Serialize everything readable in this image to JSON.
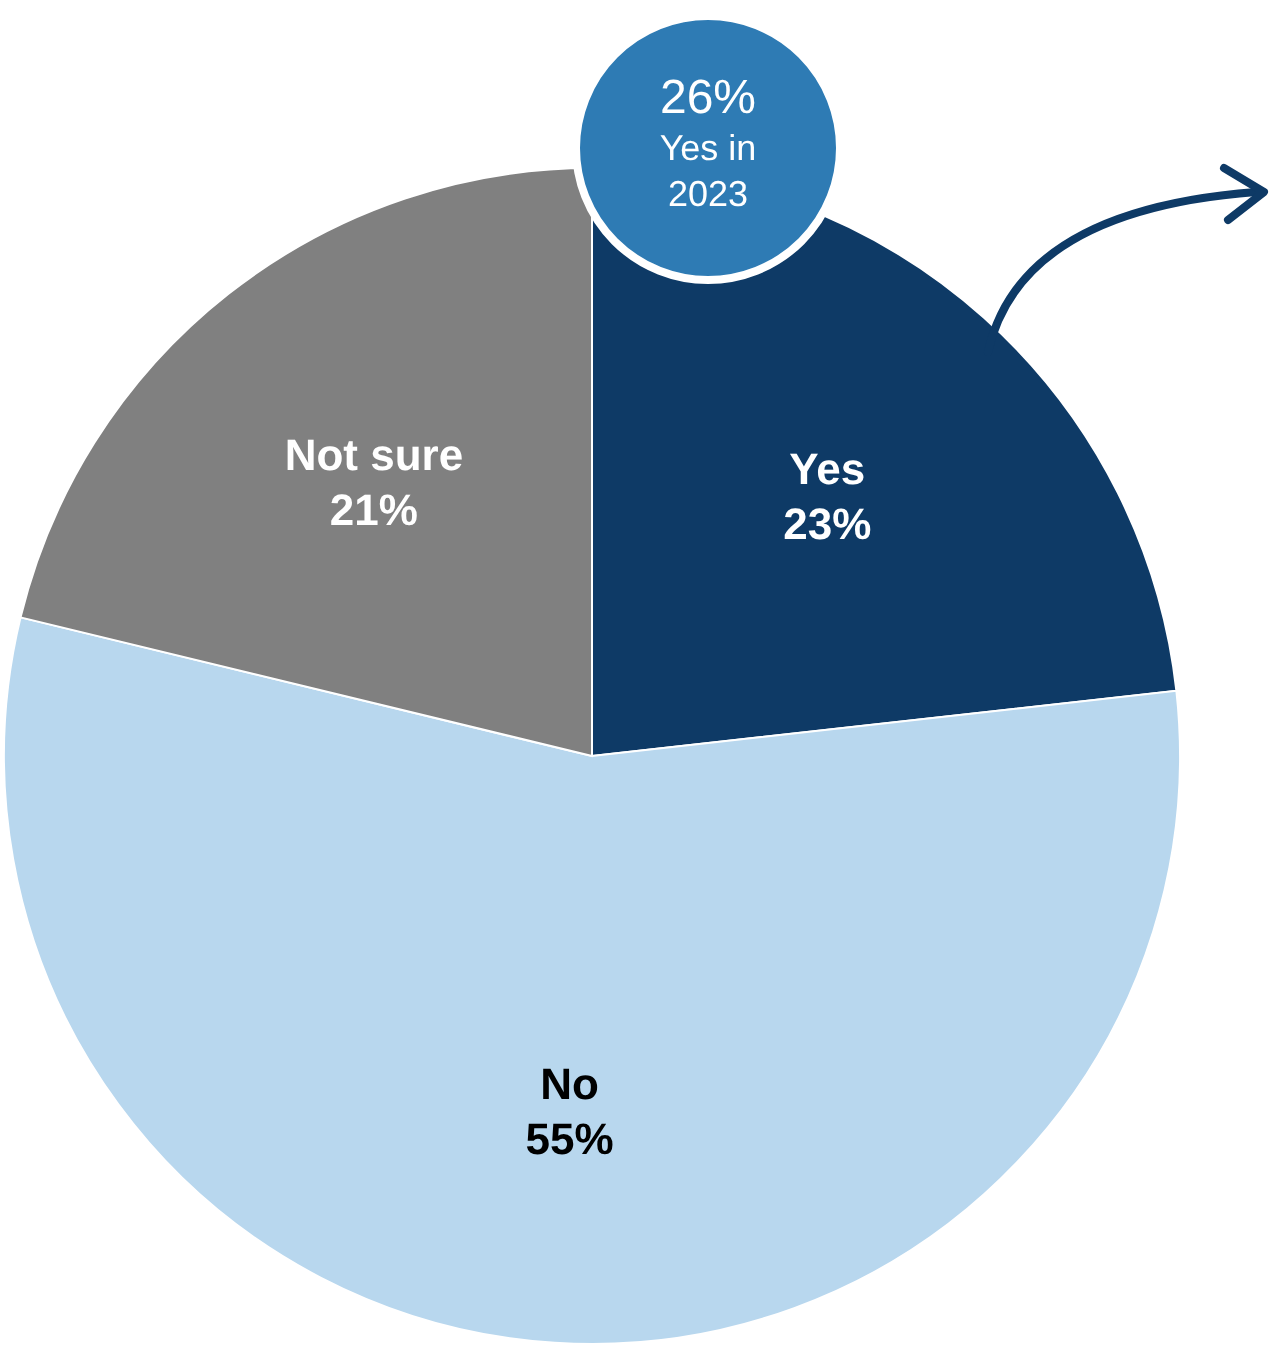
{
  "chart_data": {
    "type": "pie",
    "categories": [
      "Yes",
      "No",
      "Not sure"
    ],
    "values": [
      23,
      55,
      21
    ],
    "colors": [
      "#0e3a66",
      "#b8d7ee",
      "#808080"
    ],
    "value_labels": [
      "23%",
      "55%",
      "21%"
    ],
    "legend": false,
    "annotations": [
      "26%\nYes in\n2023"
    ]
  }
}
